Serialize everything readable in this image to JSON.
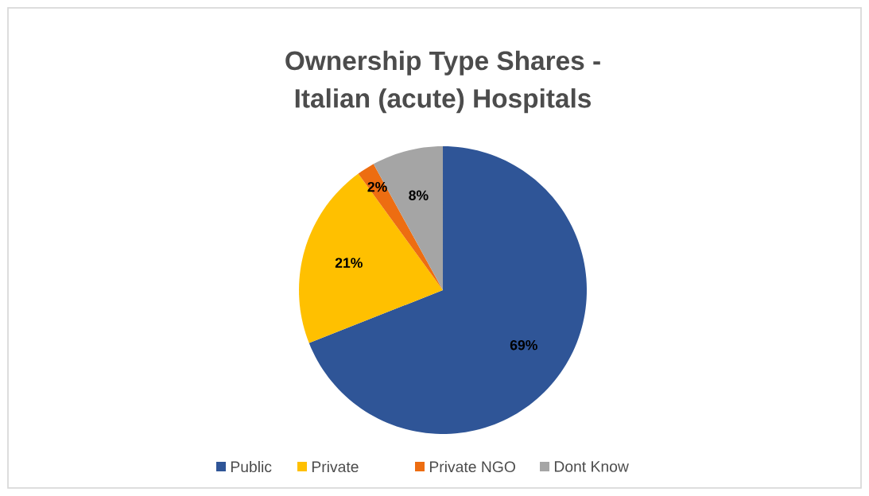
{
  "chart_data": {
    "type": "pie",
    "title": "Ownership Type Shares -\nItalian (acute) Hospitals",
    "categories": [
      "Public",
      "Private",
      "Private NGO",
      "Dont Know"
    ],
    "values": [
      69,
      21,
      2,
      8
    ],
    "colors": [
      "#2f5597",
      "#ffc000",
      "#ed6d11",
      "#a5a5a5"
    ],
    "value_labels": [
      "69%",
      "21%",
      "2%",
      "8%"
    ],
    "legend": "bottom"
  }
}
